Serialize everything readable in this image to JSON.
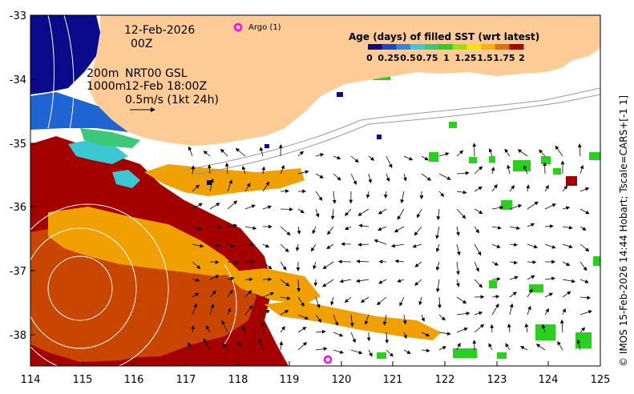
{
  "date_line": "12-Feb-2026",
  "time_line": "00Z",
  "depth_line_1": "200m",
  "product_line": "NRT00 GSL",
  "depth_line_2": "1000m",
  "analysis_time": "12-Feb 18:00Z",
  "current_scale": "0.5m/s (1kt 24h)",
  "argo_label": "Argo (1)",
  "colorbar": {
    "title": "Age (days) of filled SST (wrt latest)",
    "ticks": [
      "0",
      "0.25",
      "0.5",
      "0.75",
      "1",
      "1.25",
      "1.5",
      "1.75",
      "2"
    ],
    "colors": [
      "#0a0a8a",
      "#1e46c8",
      "#2a8ae0",
      "#3cc8e0",
      "#3cc878",
      "#2ad020",
      "#a0e000",
      "#ffe000",
      "#ffb000",
      "#e07000",
      "#b40000"
    ]
  },
  "x_ticks": [
    "114",
    "115",
    "116",
    "117",
    "118",
    "119",
    "120",
    "121",
    "122",
    "123",
    "124",
    "125"
  ],
  "y_ticks": [
    "-33",
    "-34",
    "-35",
    "-36",
    "-37",
    "-38"
  ],
  "side_credit": "© IMOS 15-Feb-2026 14:44 Hobart; Tscale=CARS+[-1 1]",
  "colors": {
    "land": "#fccb96",
    "deep_navy": "#0a0a8a",
    "blue": "#1e64d2",
    "cyan": "#3cc8d2",
    "dark_red": "#a50000",
    "red_brown": "#c84600",
    "orange": "#f0a000",
    "green": "#2ad020",
    "argo_marker": "#ff00ff"
  }
}
